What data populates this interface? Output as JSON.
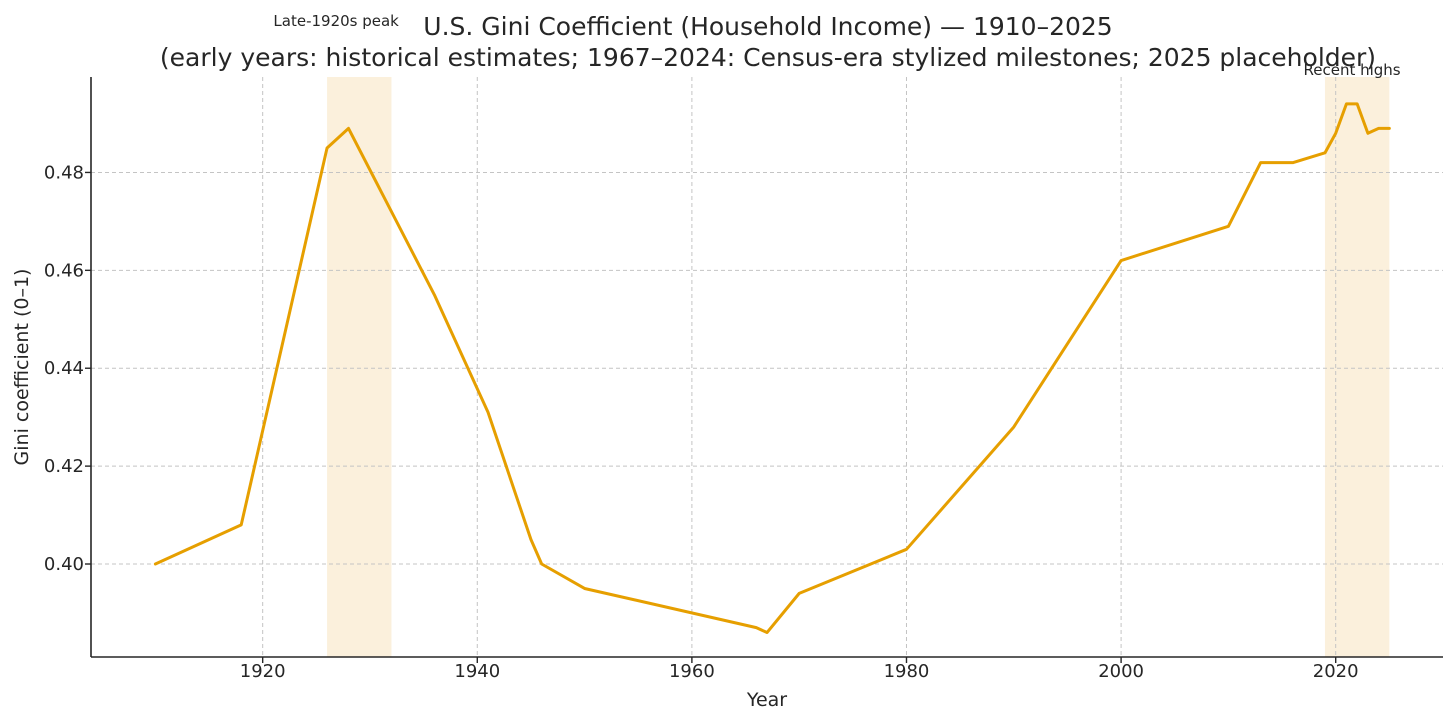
{
  "chart_data": {
    "type": "line",
    "title": "U.S. Gini Coefficient (Household Income) — 1910–2025",
    "subtitle": "(early years: historical estimates; 1967–2024: Census-era stylized milestones; 2025 placeholder)",
    "xlabel": "Year",
    "ylabel": "Gini coefficient (0–1)",
    "xlim": [
      1904,
      2030
    ],
    "ylim": [
      0.381,
      0.4995
    ],
    "xticks": [
      1920,
      1940,
      1960,
      1980,
      2000,
      2020
    ],
    "yticks": [
      0.4,
      0.42,
      0.44,
      0.46,
      0.48
    ],
    "ytick_labels": [
      "0.40",
      "0.42",
      "0.44",
      "0.46",
      "0.48"
    ],
    "grid": true,
    "series_color": "#E69F00",
    "shade_color": "#FBF0DC",
    "x": [
      1910,
      1918,
      1926,
      1928,
      1936,
      1941,
      1945,
      1946,
      1950,
      1966,
      1967,
      1970,
      1980,
      1990,
      2000,
      2010,
      2013,
      2016,
      2019,
      2020,
      2021,
      2022,
      2023,
      2024,
      2025
    ],
    "y": [
      0.4,
      0.408,
      0.485,
      0.489,
      0.455,
      0.431,
      0.405,
      0.4,
      0.395,
      0.387,
      0.386,
      0.394,
      0.403,
      0.428,
      0.462,
      0.469,
      0.482,
      0.482,
      0.484,
      0.488,
      0.494,
      0.494,
      0.488,
      0.489,
      0.489
    ],
    "shaded_regions": [
      {
        "x_start": 1926,
        "x_end": 1932,
        "label": "Late-1920s peak",
        "label_x": 1921
      },
      {
        "x_start": 2019,
        "x_end": 2025,
        "label": "Recent highs",
        "label_x": 2017
      }
    ]
  }
}
